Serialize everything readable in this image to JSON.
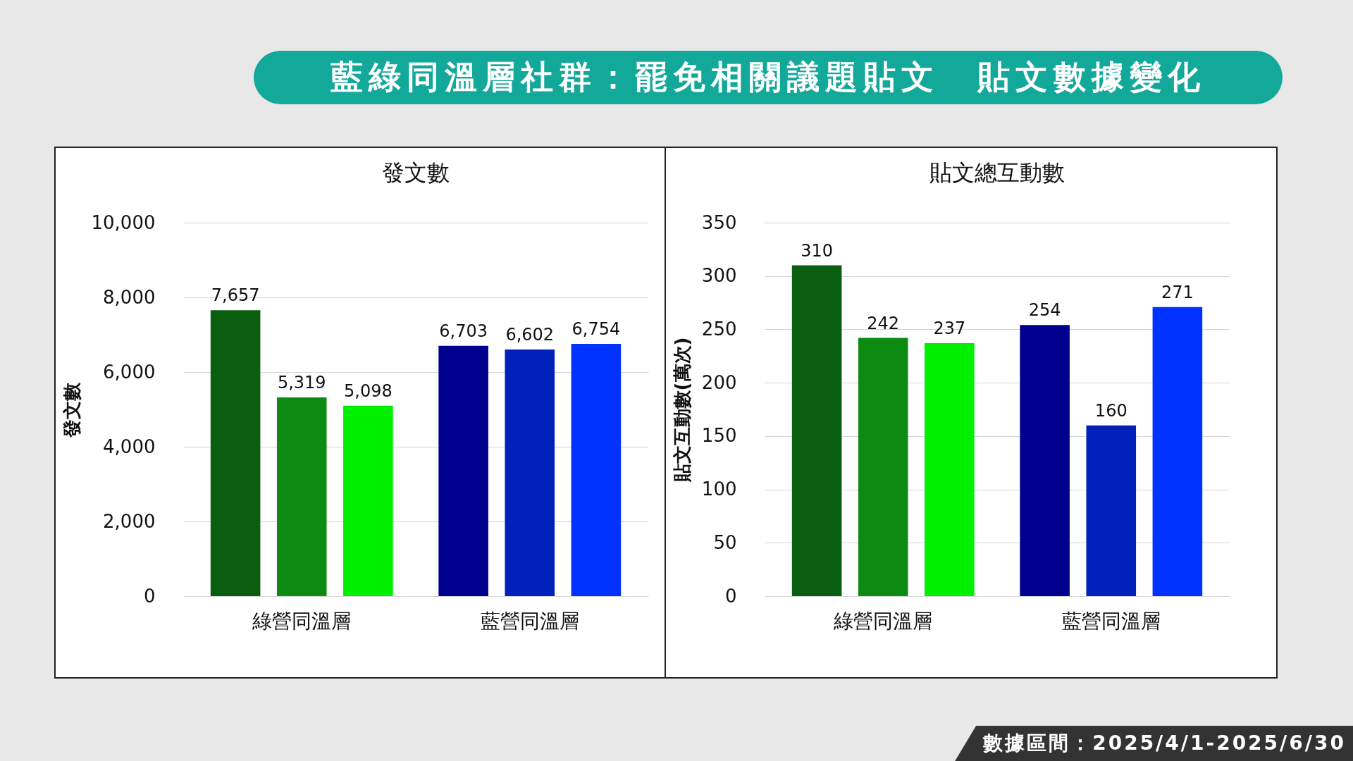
{
  "chart_data": [
    {
      "type": "bar",
      "title": "發文數",
      "ylabel": "發文數",
      "categories": [
        "綠營同溫層",
        "藍營同溫層"
      ],
      "series": [
        {
          "colors": [
            "#0b5e0f",
            "#00008f"
          ],
          "values": [
            7657,
            6703
          ],
          "value_labels": [
            "7,657",
            "6,703"
          ]
        },
        {
          "colors": [
            "#0d8a12",
            "#0022bb"
          ],
          "values": [
            5319,
            6602
          ],
          "value_labels": [
            "5,319",
            "6,602"
          ]
        },
        {
          "colors": [
            "#00f000",
            "#0033ff"
          ],
          "values": [
            5098,
            6754
          ],
          "value_labels": [
            "5,098",
            "6,754"
          ]
        }
      ],
      "ylim": [
        0,
        10000
      ],
      "yticks": [
        0,
        {
          "value": 2000,
          "label": "2,000"
        },
        {
          "value": 4000,
          "label": "4,000"
        },
        {
          "value": 6000,
          "label": "6,000"
        },
        {
          "value": 8000,
          "label": "8,000"
        },
        {
          "value": 10000,
          "label": "10,000"
        }
      ],
      "grid": "y",
      "annotations": [
        "藍綠同溫層社群：罷免相關議題貼文　貼文數據變化"
      ]
    },
    {
      "type": "bar",
      "title": "貼文總互動數",
      "ylabel": "貼文互動數(萬次)",
      "categories": [
        "綠營同溫層",
        "藍營同溫層"
      ],
      "series": [
        {
          "colors": [
            "#0b5e0f",
            "#00008f"
          ],
          "values": [
            310,
            254
          ]
        },
        {
          "colors": [
            "#0d8a12",
            "#0022bb"
          ],
          "values": [
            242,
            160
          ]
        },
        {
          "colors": [
            "#00f000",
            "#0033ff"
          ],
          "values": [
            237,
            271
          ]
        }
      ],
      "ylim": [
        0,
        350
      ],
      "yticks": [
        0,
        50,
        100,
        150,
        200,
        250,
        300,
        350
      ],
      "grid": "y",
      "data_labels": true,
      "annotations": [
        "數據區間：2025/4/1-2025/6/30"
      ]
    }
  ]
}
